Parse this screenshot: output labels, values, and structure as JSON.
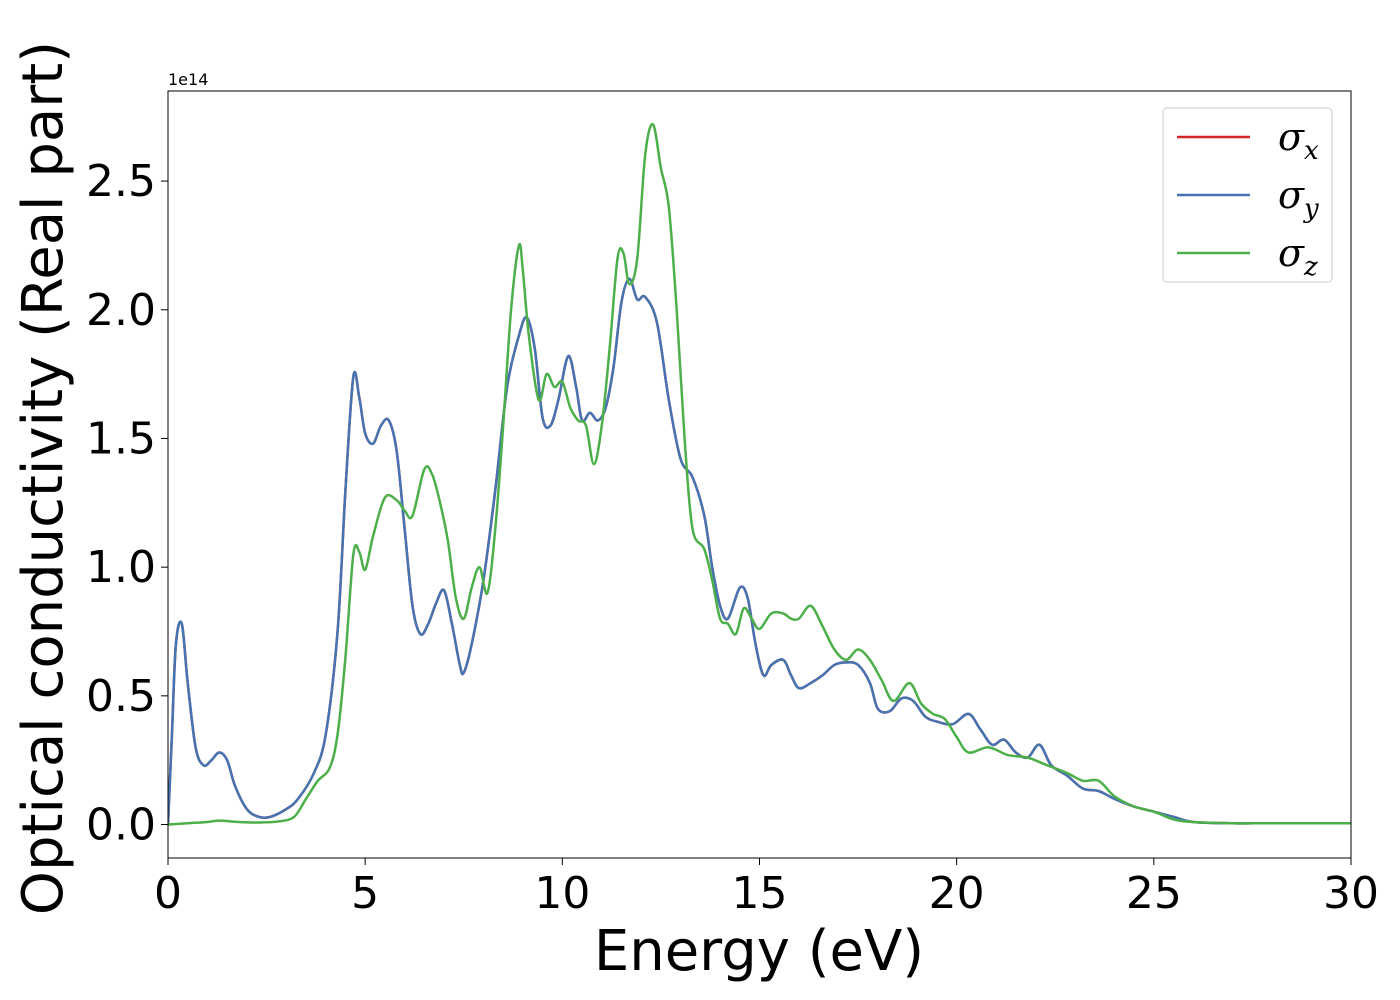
{
  "chart_data": {
    "type": "line",
    "xlabel": "Energy (eV)",
    "ylabel": "Optical conductivity (Real part)",
    "offset_text": "1e14",
    "xlim": [
      0,
      30
    ],
    "ylim": [
      -0.13,
      2.85
    ],
    "y_scale_factor": "1e14",
    "xticks": [
      0,
      5,
      10,
      15,
      20,
      25,
      30
    ],
    "xtick_labels": [
      "0",
      "5",
      "10",
      "15",
      "20",
      "25",
      "30"
    ],
    "yticks": [
      0.0,
      0.5,
      1.0,
      1.5,
      2.0,
      2.5
    ],
    "ytick_labels": [
      "0.0",
      "0.5",
      "1.0",
      "1.5",
      "2.0",
      "2.5"
    ],
    "grid": false,
    "legend_position": "upper right",
    "series": [
      {
        "name": "σx",
        "symbol": "σ",
        "subscript": "x",
        "color": "#d62728",
        "x": [
          0,
          0.1,
          0.2,
          0.35,
          0.5,
          0.7,
          0.9,
          1.1,
          1.3,
          1.5,
          1.7,
          2.0,
          2.3,
          2.6,
          3.0,
          3.3,
          3.7,
          4.0,
          4.3,
          4.5,
          4.7,
          4.85,
          5.0,
          5.2,
          5.4,
          5.6,
          5.8,
          6.0,
          6.2,
          6.4,
          6.6,
          6.8,
          7.0,
          7.2,
          7.4,
          7.5,
          7.7,
          8.0,
          8.3,
          8.6,
          8.9,
          9.1,
          9.3,
          9.5,
          9.7,
          9.9,
          10.15,
          10.35,
          10.5,
          10.7,
          10.9,
          11.1,
          11.3,
          11.5,
          11.7,
          11.9,
          12.1,
          12.4,
          12.7,
          13.0,
          13.3,
          13.6,
          13.8,
          14.0,
          14.2,
          14.5,
          14.7,
          14.9,
          15.1,
          15.3,
          15.6,
          15.8,
          16.0,
          16.3,
          16.6,
          16.9,
          17.2,
          17.5,
          17.8,
          18.0,
          18.3,
          18.6,
          18.9,
          19.2,
          19.5,
          19.9,
          20.3,
          20.6,
          20.9,
          21.2,
          21.5,
          21.8,
          22.1,
          22.4,
          22.8,
          23.2,
          23.6,
          24.0,
          24.5,
          25.0,
          25.5,
          26.0,
          27.0,
          28.0,
          30.0
        ],
        "values": [
          0,
          0.35,
          0.7,
          0.78,
          0.55,
          0.3,
          0.23,
          0.25,
          0.28,
          0.25,
          0.15,
          0.06,
          0.03,
          0.03,
          0.06,
          0.1,
          0.2,
          0.35,
          0.75,
          1.3,
          1.74,
          1.66,
          1.52,
          1.48,
          1.55,
          1.57,
          1.45,
          1.15,
          0.85,
          0.74,
          0.78,
          0.86,
          0.91,
          0.78,
          0.62,
          0.59,
          0.7,
          0.95,
          1.3,
          1.7,
          1.9,
          1.97,
          1.85,
          1.58,
          1.55,
          1.65,
          1.82,
          1.7,
          1.57,
          1.6,
          1.57,
          1.62,
          1.78,
          2.03,
          2.12,
          2.04,
          2.05,
          1.95,
          1.65,
          1.42,
          1.35,
          1.2,
          1.0,
          0.85,
          0.8,
          0.92,
          0.88,
          0.7,
          0.58,
          0.62,
          0.64,
          0.58,
          0.53,
          0.55,
          0.58,
          0.62,
          0.63,
          0.62,
          0.55,
          0.45,
          0.44,
          0.49,
          0.48,
          0.42,
          0.4,
          0.39,
          0.43,
          0.37,
          0.31,
          0.33,
          0.28,
          0.26,
          0.31,
          0.23,
          0.19,
          0.14,
          0.13,
          0.1,
          0.07,
          0.05,
          0.03,
          0.01,
          0.005,
          0.005,
          0.005
        ]
      },
      {
        "name": "σy",
        "symbol": "σ",
        "subscript": "y",
        "color": "#4574b3",
        "x": [
          0,
          0.1,
          0.2,
          0.35,
          0.5,
          0.7,
          0.9,
          1.1,
          1.3,
          1.5,
          1.7,
          2.0,
          2.3,
          2.6,
          3.0,
          3.3,
          3.7,
          4.0,
          4.3,
          4.5,
          4.7,
          4.85,
          5.0,
          5.2,
          5.4,
          5.6,
          5.8,
          6.0,
          6.2,
          6.4,
          6.6,
          6.8,
          7.0,
          7.2,
          7.4,
          7.5,
          7.7,
          8.0,
          8.3,
          8.6,
          8.9,
          9.1,
          9.3,
          9.5,
          9.7,
          9.9,
          10.15,
          10.35,
          10.5,
          10.7,
          10.9,
          11.1,
          11.3,
          11.5,
          11.7,
          11.9,
          12.1,
          12.4,
          12.7,
          13.0,
          13.3,
          13.6,
          13.8,
          14.0,
          14.2,
          14.5,
          14.7,
          14.9,
          15.1,
          15.3,
          15.6,
          15.8,
          16.0,
          16.3,
          16.6,
          16.9,
          17.2,
          17.5,
          17.8,
          18.0,
          18.3,
          18.6,
          18.9,
          19.2,
          19.5,
          19.9,
          20.3,
          20.6,
          20.9,
          21.2,
          21.5,
          21.8,
          22.1,
          22.4,
          22.8,
          23.2,
          23.6,
          24.0,
          24.5,
          25.0,
          25.5,
          26.0,
          27.0,
          28.0,
          30.0
        ],
        "values": [
          0,
          0.35,
          0.7,
          0.78,
          0.55,
          0.3,
          0.23,
          0.25,
          0.28,
          0.25,
          0.15,
          0.06,
          0.03,
          0.03,
          0.06,
          0.1,
          0.2,
          0.35,
          0.75,
          1.3,
          1.74,
          1.66,
          1.52,
          1.48,
          1.55,
          1.57,
          1.45,
          1.15,
          0.85,
          0.74,
          0.78,
          0.86,
          0.91,
          0.78,
          0.62,
          0.59,
          0.7,
          0.95,
          1.3,
          1.7,
          1.9,
          1.97,
          1.85,
          1.58,
          1.55,
          1.65,
          1.82,
          1.7,
          1.57,
          1.6,
          1.57,
          1.62,
          1.78,
          2.03,
          2.12,
          2.04,
          2.05,
          1.95,
          1.65,
          1.42,
          1.35,
          1.2,
          1.0,
          0.85,
          0.8,
          0.92,
          0.88,
          0.7,
          0.58,
          0.62,
          0.64,
          0.58,
          0.53,
          0.55,
          0.58,
          0.62,
          0.63,
          0.62,
          0.55,
          0.45,
          0.44,
          0.49,
          0.48,
          0.42,
          0.4,
          0.39,
          0.43,
          0.37,
          0.31,
          0.33,
          0.28,
          0.26,
          0.31,
          0.23,
          0.19,
          0.14,
          0.13,
          0.1,
          0.07,
          0.05,
          0.03,
          0.01,
          0.005,
          0.005,
          0.005
        ]
      },
      {
        "name": "σz",
        "symbol": "σ",
        "subscript": "z",
        "color": "#4daf4a",
        "x": [
          0,
          0.5,
          1.0,
          1.3,
          1.8,
          2.3,
          2.8,
          3.2,
          3.5,
          3.8,
          4.1,
          4.3,
          4.5,
          4.7,
          4.85,
          5.0,
          5.2,
          5.5,
          5.8,
          6.0,
          6.2,
          6.5,
          6.7,
          6.9,
          7.1,
          7.3,
          7.5,
          7.7,
          7.9,
          8.1,
          8.3,
          8.5,
          8.7,
          8.9,
          9.0,
          9.15,
          9.4,
          9.6,
          9.8,
          10.0,
          10.2,
          10.4,
          10.6,
          10.8,
          11.0,
          11.2,
          11.4,
          11.55,
          11.7,
          11.9,
          12.1,
          12.3,
          12.5,
          12.7,
          12.9,
          13.1,
          13.3,
          13.6,
          13.8,
          14.0,
          14.2,
          14.4,
          14.6,
          14.8,
          15.0,
          15.3,
          15.6,
          15.8,
          16.0,
          16.3,
          16.6,
          16.9,
          17.2,
          17.5,
          17.8,
          18.1,
          18.4,
          18.8,
          19.1,
          19.4,
          19.7,
          20.0,
          20.3,
          20.8,
          21.3,
          21.8,
          22.3,
          22.8,
          23.2,
          23.6,
          24.0,
          24.5,
          25.0,
          25.5,
          26.0,
          27.0,
          28.0,
          30.0
        ],
        "values": [
          0,
          0.005,
          0.01,
          0.015,
          0.01,
          0.008,
          0.012,
          0.03,
          0.1,
          0.17,
          0.22,
          0.35,
          0.65,
          1.05,
          1.06,
          0.99,
          1.12,
          1.27,
          1.26,
          1.22,
          1.2,
          1.38,
          1.36,
          1.25,
          1.1,
          0.88,
          0.8,
          0.92,
          1.0,
          0.9,
          1.15,
          1.55,
          2.0,
          2.25,
          2.15,
          1.9,
          1.65,
          1.75,
          1.7,
          1.72,
          1.62,
          1.57,
          1.55,
          1.4,
          1.55,
          1.85,
          2.2,
          2.22,
          2.1,
          2.2,
          2.6,
          2.72,
          2.55,
          2.4,
          2.0,
          1.5,
          1.15,
          1.07,
          0.95,
          0.8,
          0.78,
          0.74,
          0.84,
          0.8,
          0.76,
          0.82,
          0.82,
          0.8,
          0.8,
          0.85,
          0.77,
          0.68,
          0.64,
          0.68,
          0.64,
          0.56,
          0.48,
          0.55,
          0.47,
          0.43,
          0.41,
          0.34,
          0.28,
          0.3,
          0.27,
          0.26,
          0.23,
          0.2,
          0.17,
          0.17,
          0.11,
          0.07,
          0.05,
          0.02,
          0.01,
          0.005,
          0.005,
          0.005
        ]
      }
    ]
  }
}
